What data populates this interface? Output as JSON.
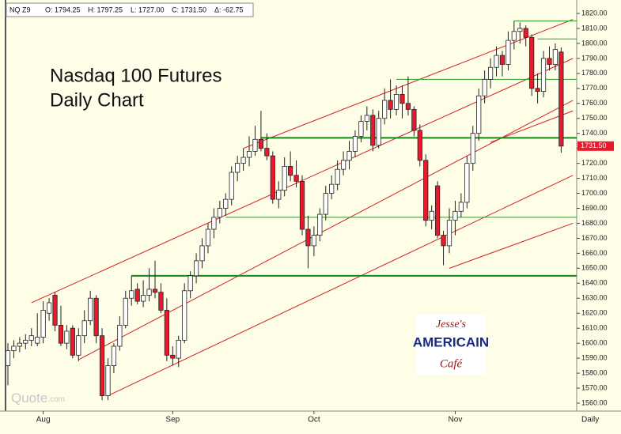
{
  "chart_data": {
    "type": "candlestick",
    "title": "Nasdaq 100 Futures",
    "subtitle": "Daily Chart",
    "header": [
      "NQ Z9",
      "O: 1794.25",
      "H: 1797.25",
      "L: 1727.00",
      "C: 1731.50",
      "Δ: -62.75"
    ],
    "x_label": "Daily",
    "watermark": "Quote",
    "watermark_suffix": ".com",
    "logo": [
      "Jesse's",
      "AMERICAIN",
      "Café"
    ],
    "up_color": "#ffffff",
    "down_color": "#e8192c",
    "categories": [
      null,
      null,
      null,
      null,
      null,
      null,
      "Aug",
      null,
      null,
      null,
      null,
      null,
      null,
      null,
      null,
      null,
      null,
      null,
      null,
      null,
      null,
      null,
      null,
      null,
      null,
      null,
      null,
      null,
      "Sep",
      null,
      null,
      null,
      null,
      null,
      null,
      null,
      null,
      null,
      null,
      null,
      null,
      null,
      null,
      null,
      null,
      null,
      null,
      null,
      null,
      null,
      null,
      null,
      "Oct",
      null,
      null,
      null,
      null,
      null,
      null,
      null,
      null,
      null,
      null,
      null,
      null,
      null,
      null,
      null,
      null,
      null,
      null,
      null,
      null,
      null,
      null,
      null,
      "Nov",
      null,
      null,
      null,
      null,
      null,
      null,
      null,
      null,
      null,
      null,
      null,
      null,
      null,
      null,
      null,
      null,
      null,
      null,
      null
    ],
    "ohlc": [
      [
        1585,
        1600,
        1572,
        1595
      ],
      [
        1595,
        1602,
        1590,
        1598
      ],
      [
        1598,
        1604,
        1594,
        1600
      ],
      [
        1600,
        1606,
        1596,
        1602
      ],
      [
        1602,
        1610,
        1598,
        1605
      ],
      [
        1600,
        1620,
        1598,
        1604
      ],
      [
        1604,
        1628,
        1600,
        1622
      ],
      [
        1620,
        1630,
        1615,
        1627
      ],
      [
        1632,
        1634,
        1608,
        1612
      ],
      [
        1612,
        1625,
        1598,
        1600
      ],
      [
        1600,
        1612,
        1596,
        1608
      ],
      [
        1610,
        1612,
        1590,
        1592
      ],
      [
        1592,
        1610,
        1588,
        1605
      ],
      [
        1605,
        1622,
        1600,
        1615
      ],
      [
        1615,
        1635,
        1612,
        1630
      ],
      [
        1630,
        1632,
        1600,
        1605
      ],
      [
        1605,
        1610,
        1562,
        1565
      ],
      [
        1565,
        1590,
        1562,
        1585
      ],
      [
        1585,
        1600,
        1580,
        1598
      ],
      [
        1598,
        1618,
        1595,
        1612
      ],
      [
        1612,
        1635,
        1610,
        1630
      ],
      [
        1630,
        1645,
        1625,
        1635
      ],
      [
        1636,
        1640,
        1626,
        1628
      ],
      [
        1628,
        1642,
        1624,
        1632
      ],
      [
        1632,
        1650,
        1628,
        1636
      ],
      [
        1636,
        1655,
        1630,
        1634
      ],
      [
        1634,
        1640,
        1620,
        1622
      ],
      [
        1622,
        1630,
        1588,
        1592
      ],
      [
        1592,
        1598,
        1585,
        1590
      ],
      [
        1590,
        1605,
        1584,
        1602
      ],
      [
        1602,
        1640,
        1600,
        1635
      ],
      [
        1635,
        1648,
        1630,
        1645
      ],
      [
        1645,
        1660,
        1640,
        1655
      ],
      [
        1655,
        1670,
        1650,
        1665
      ],
      [
        1665,
        1680,
        1660,
        1676
      ],
      [
        1676,
        1690,
        1670,
        1684
      ],
      [
        1684,
        1695,
        1680,
        1690
      ],
      [
        1690,
        1700,
        1685,
        1696
      ],
      [
        1696,
        1718,
        1692,
        1714
      ],
      [
        1714,
        1725,
        1708,
        1720
      ],
      [
        1720,
        1730,
        1715,
        1724
      ],
      [
        1724,
        1738,
        1718,
        1728
      ],
      [
        1728,
        1745,
        1725,
        1736
      ],
      [
        1736,
        1755,
        1728,
        1730
      ],
      [
        1730,
        1740,
        1722,
        1725
      ],
      [
        1725,
        1728,
        1693,
        1696
      ],
      [
        1696,
        1708,
        1690,
        1702
      ],
      [
        1702,
        1724,
        1698,
        1718
      ],
      [
        1718,
        1728,
        1708,
        1712
      ],
      [
        1712,
        1722,
        1704,
        1708
      ],
      [
        1708,
        1712,
        1672,
        1676
      ],
      [
        1676,
        1685,
        1650,
        1665
      ],
      [
        1665,
        1678,
        1658,
        1672
      ],
      [
        1672,
        1690,
        1668,
        1686
      ],
      [
        1686,
        1705,
        1682,
        1700
      ],
      [
        1700,
        1712,
        1696,
        1706
      ],
      [
        1706,
        1722,
        1702,
        1716
      ],
      [
        1716,
        1728,
        1712,
        1722
      ],
      [
        1722,
        1735,
        1716,
        1728
      ],
      [
        1728,
        1742,
        1724,
        1738
      ],
      [
        1738,
        1752,
        1734,
        1748
      ],
      [
        1748,
        1758,
        1742,
        1752
      ],
      [
        1752,
        1756,
        1728,
        1732
      ],
      [
        1732,
        1755,
        1730,
        1750
      ],
      [
        1750,
        1770,
        1746,
        1762
      ],
      [
        1762,
        1776,
        1750,
        1756
      ],
      [
        1756,
        1772,
        1752,
        1766
      ],
      [
        1766,
        1772,
        1750,
        1760
      ],
      [
        1760,
        1778,
        1752,
        1756
      ],
      [
        1756,
        1758,
        1738,
        1742
      ],
      [
        1742,
        1746,
        1718,
        1722
      ],
      [
        1722,
        1726,
        1678,
        1682
      ],
      [
        1682,
        1692,
        1676,
        1688
      ],
      [
        1705,
        1708,
        1670,
        1672
      ],
      [
        1672,
        1675,
        1652,
        1665
      ],
      [
        1665,
        1690,
        1660,
        1682
      ],
      [
        1682,
        1695,
        1672,
        1688
      ],
      [
        1688,
        1700,
        1684,
        1694
      ],
      [
        1694,
        1725,
        1690,
        1720
      ],
      [
        1720,
        1745,
        1715,
        1740
      ],
      [
        1740,
        1770,
        1735,
        1765
      ],
      [
        1765,
        1782,
        1760,
        1776
      ],
      [
        1776,
        1790,
        1770,
        1784
      ],
      [
        1784,
        1798,
        1778,
        1792
      ],
      [
        1792,
        1795,
        1778,
        1786
      ],
      [
        1786,
        1808,
        1782,
        1802
      ],
      [
        1802,
        1815,
        1796,
        1808
      ],
      [
        1808,
        1814,
        1800,
        1810
      ],
      [
        1810,
        1812,
        1798,
        1804
      ],
      [
        1804,
        1806,
        1765,
        1770
      ],
      [
        1770,
        1780,
        1760,
        1768
      ],
      [
        1768,
        1795,
        1764,
        1790
      ],
      [
        1790,
        1798,
        1782,
        1786
      ],
      [
        1786,
        1800,
        1782,
        1796
      ],
      [
        1794.25,
        1797.25,
        1727,
        1731.5
      ]
    ],
    "ylim": [
      1560,
      1820
    ],
    "yticks": [
      {
        "value": 1560,
        "label": "1560.00"
      },
      {
        "value": 1570,
        "label": "1570.00"
      },
      {
        "value": 1580,
        "label": "1580.00"
      },
      {
        "value": 1590,
        "label": "1590.00"
      },
      {
        "value": 1600,
        "label": "1600.00"
      },
      {
        "value": 1610,
        "label": "1610.00"
      },
      {
        "value": 1620,
        "label": "1620.00"
      },
      {
        "value": 1630,
        "label": "1630.00"
      },
      {
        "value": 1640,
        "label": "1640.00"
      },
      {
        "value": 1650,
        "label": "1650.00"
      },
      {
        "value": 1660,
        "label": "1660.00"
      },
      {
        "value": 1670,
        "label": "1670.00"
      },
      {
        "value": 1680,
        "label": "1680.00"
      },
      {
        "value": 1690,
        "label": "1690.00"
      },
      {
        "value": 1700,
        "label": "1700.00"
      },
      {
        "value": 1710,
        "label": "1710.00"
      },
      {
        "value": 1720,
        "label": "1720.00"
      },
      {
        "value": 1730,
        "label": "1730.00"
      },
      {
        "value": 1740,
        "label": "1740.00"
      },
      {
        "value": 1750,
        "label": "1750.00"
      },
      {
        "value": 1760,
        "label": "1760.00"
      },
      {
        "value": 1770,
        "label": "1770.00"
      },
      {
        "value": 1780,
        "label": "1780.00"
      },
      {
        "value": 1790,
        "label": "1790.00"
      },
      {
        "value": 1800,
        "label": "1800.00"
      },
      {
        "value": 1810,
        "label": "1810.00"
      },
      {
        "value": 1820,
        "label": "1820.00"
      }
    ],
    "last_price": {
      "value": 1731.5,
      "label": "1731.50"
    },
    "trend_lines": [
      {
        "color": "#d42020",
        "from": [
          4,
          1627
        ],
        "to": [
          96,
          1790
        ]
      },
      {
        "color": "#d42020",
        "from": [
          40,
          1730
        ],
        "to": [
          96,
          1816
        ]
      },
      {
        "color": "#d42020",
        "from": [
          12,
          1589
        ],
        "to": [
          96,
          1762
        ]
      },
      {
        "color": "#d42020",
        "from": [
          17,
          1565
        ],
        "to": [
          96,
          1712
        ]
      },
      {
        "color": "#d42020",
        "from": [
          75,
          1650
        ],
        "to": [
          96,
          1680
        ]
      },
      {
        "color": "#d42020",
        "from": [
          82,
          1734
        ],
        "to": [
          96,
          1755
        ]
      }
    ],
    "levels": [
      {
        "color": "#138a13",
        "value": 1645,
        "from": 21,
        "width": 2
      },
      {
        "color": "#138a13",
        "value": 1737,
        "from": 43,
        "width": 2
      },
      {
        "color": "#2aa02a",
        "value": 1684,
        "from": 37,
        "width": 1
      },
      {
        "color": "#2aa02a",
        "value": 1776,
        "from": 66,
        "width": 1
      },
      {
        "color": "#2aa02a",
        "value": 1815,
        "from": 86,
        "width": 1
      },
      {
        "color": "#2aa02a",
        "value": 1803,
        "from": 90,
        "width": 1
      }
    ]
  }
}
